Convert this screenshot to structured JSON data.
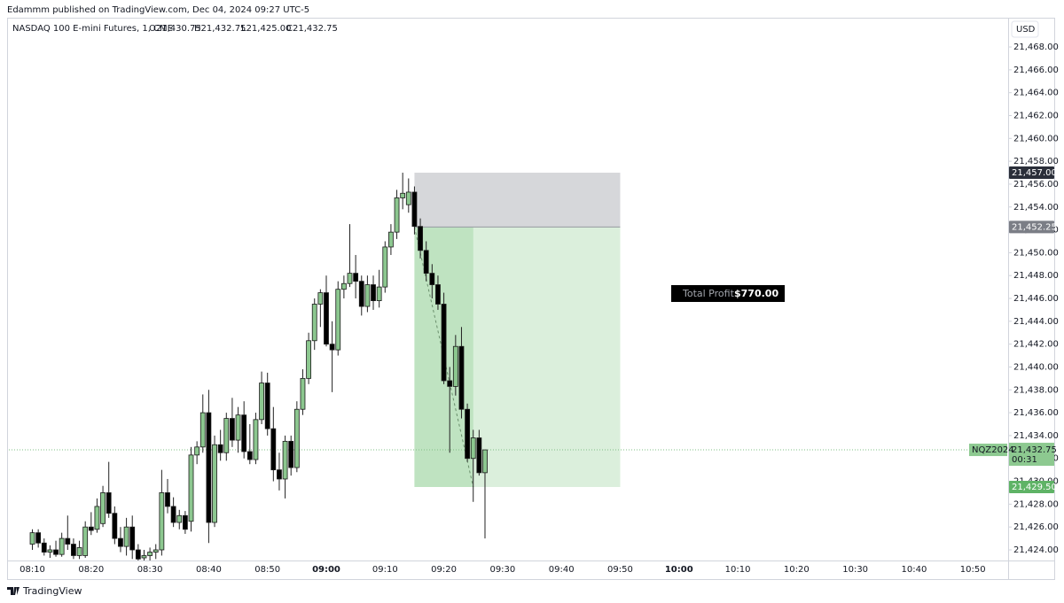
{
  "header": {
    "published": "Edammm published on TradingView.com, Dec 04, 2024 09:27 UTC-5",
    "symbol": "NASDAQ 100 E-mini Futures, 1, CME",
    "ohlc": [
      "O21,430.75",
      "H21,432.75",
      "L21,425.00",
      "C21,432.75"
    ],
    "currency": "USD",
    "brand": "TradingView"
  },
  "chart_data": {
    "type": "candlestick",
    "x": [
      "08:10",
      "08:11",
      "08:12",
      "08:13",
      "08:14",
      "08:15",
      "08:16",
      "08:17",
      "08:18",
      "08:19",
      "08:20",
      "08:21",
      "08:22",
      "08:23",
      "08:24",
      "08:25",
      "08:26",
      "08:27",
      "08:28",
      "08:29",
      "08:30",
      "08:31",
      "08:32",
      "08:33",
      "08:34",
      "08:35",
      "08:36",
      "08:37",
      "08:38",
      "08:39",
      "08:40",
      "08:41",
      "08:42",
      "08:43",
      "08:44",
      "08:45",
      "08:46",
      "08:47",
      "08:48",
      "08:49",
      "08:50",
      "08:51",
      "08:52",
      "08:53",
      "08:54",
      "08:55",
      "08:56",
      "08:57",
      "08:58",
      "08:59",
      "09:00",
      "09:01",
      "09:02",
      "09:03",
      "09:04",
      "09:05",
      "09:06",
      "09:07",
      "09:08",
      "09:09",
      "09:10",
      "09:11",
      "09:12",
      "09:13",
      "09:14",
      "09:15",
      "09:16",
      "09:17",
      "09:18",
      "09:19",
      "09:20",
      "09:21",
      "09:22",
      "09:23",
      "09:24",
      "09:25",
      "09:26",
      "09:27"
    ],
    "open": [
      21424.5,
      21425.5,
      21424.6,
      21423.8,
      21424,
      21423.6,
      21425,
      21424.5,
      21423.5,
      21423.5,
      21426,
      21425.8,
      21426.3,
      21429,
      21427.2,
      21425,
      21424.3,
      21426,
      21424,
      21423.3,
      21423.5,
      21423.8,
      21424,
      21429,
      21427.8,
      21426.4,
      21427,
      21426.5,
      21432.3,
      21433,
      21436,
      21426.4,
      21433.2,
      21432.5,
      21435.5,
      21433.6,
      21435.8,
      21432.6,
      21431.9,
      21435.4,
      21438.6,
      21434.6,
      21431,
      21430.2,
      21433.5,
      21431.2,
      21436.3,
      21439,
      21442.3,
      21445.5,
      21446.5,
      21442,
      21441.5,
      21446.8,
      21447.3,
      21448.2,
      21447.5,
      21445.3,
      21447.2,
      21445.8,
      21447,
      21450.5,
      21451.8,
      21454.8,
      21454.2,
      21455.3,
      21452.3,
      21450.2,
      21448.2,
      21447.2,
      21445.5,
      21438.8,
      21438.3,
      21441.8,
      21436.3,
      21432,
      21433.8,
      21430.75
    ],
    "high": [
      21425.8,
      21425.8,
      21425,
      21424.4,
      21424.8,
      21425.5,
      21427,
      21425,
      21424.8,
      21426.5,
      21427.3,
      21428.5,
      21429.6,
      21431.7,
      21427.8,
      21426,
      21426.8,
      21427,
      21424.5,
      21424,
      21424.2,
      21424.5,
      21431,
      21430.2,
      21428.6,
      21427.5,
      21427.4,
      21433,
      21433.5,
      21437.6,
      21438,
      21434,
      21434.5,
      21436,
      21437.3,
      21436.5,
      21437,
      21435,
      21436,
      21439.6,
      21439.5,
      21436.5,
      21432.5,
      21434,
      21434,
      21437,
      21439.8,
      21443,
      21446,
      21446.8,
      21448,
      21444,
      21447.5,
      21448,
      21452.5,
      21449.8,
      21448,
      21448,
      21448,
      21448.5,
      21451,
      21452.5,
      21455.5,
      21457,
      21456.5,
      21455.8,
      21453,
      21451,
      21449,
      21448,
      21446.5,
      21440,
      21442.8,
      21443.5,
      21436.8,
      21434.5,
      21434.5,
      21432.75
    ],
    "low": [
      21424,
      21424.2,
      21423.5,
      21423.3,
      21423.4,
      21423.4,
      21424,
      21423.2,
      21423.2,
      21423.3,
      21425.3,
      21425.5,
      21426,
      21426.8,
      21424.5,
      21423.8,
      21423.5,
      21423.2,
      21422.8,
      21422.9,
      21423,
      21423.2,
      21423.5,
      21427.2,
      21426,
      21425.8,
      21425.4,
      21425.6,
      21431.5,
      21432.5,
      21424.6,
      21426,
      21431.8,
      21431.8,
      21433,
      21432.5,
      21432,
      21431.5,
      21431.5,
      21435,
      21434,
      21430,
      21429.2,
      21428.5,
      21430.5,
      21430.8,
      21435.8,
      21438.5,
      21441.5,
      21443.5,
      21441.8,
      21437.8,
      21441,
      21446,
      21447,
      21446,
      21444.5,
      21444.8,
      21445,
      21445.2,
      21446.5,
      21449.8,
      21451.2,
      21453.8,
      21453.5,
      21451.6,
      21449.5,
      21447.5,
      21446,
      21445,
      21438.5,
      21432.5,
      21437.5,
      21435.5,
      21431.7,
      21428.2,
      21430.5,
      21425
    ],
    "close": [
      21425.5,
      21424.6,
      21423.8,
      21424,
      21423.6,
      21425,
      21424.5,
      21423.5,
      21424.2,
      21426,
      21425.7,
      21427.8,
      21429,
      21427.2,
      21425,
      21424.3,
      21426,
      21424,
      21423.2,
      21423.5,
      21423.8,
      21424,
      21429,
      21427.8,
      21426.4,
      21427,
      21425.8,
      21432.3,
      21433,
      21436,
      21426.4,
      21433.2,
      21432.5,
      21435.5,
      21433.6,
      21435.8,
      21432.6,
      21431.9,
      21435.4,
      21438.6,
      21434.6,
      21431,
      21430.2,
      21433.5,
      21431.2,
      21436.3,
      21439,
      21442.3,
      21445.5,
      21446.5,
      21442,
      21441.5,
      21446.8,
      21447.3,
      21448.2,
      21447.5,
      21445.3,
      21447.2,
      21445.8,
      21447,
      21450.5,
      21451.8,
      21454.8,
      21455.2,
      21455.3,
      21452.3,
      21450.2,
      21448.2,
      21447.2,
      21445.5,
      21438.8,
      21438.3,
      21441.8,
      21436.3,
      21432,
      21433.8,
      21430.75,
      21432.75
    ],
    "up_color": "#8cc78f",
    "down_color": "#000000",
    "xlim": [
      "08:06",
      "10:56"
    ],
    "xticks": [
      "08:10",
      "08:20",
      "08:30",
      "08:40",
      "08:50",
      "09:00",
      "09:10",
      "09:20",
      "09:30",
      "09:40",
      "09:50",
      "10:00",
      "10:10",
      "10:20",
      "10:30",
      "10:40",
      "10:50"
    ],
    "ylim": [
      21423.07,
      21470.56
    ],
    "yticks": [
      {
        "value": 21424,
        "label": "21,424.00"
      },
      {
        "value": 21426,
        "label": "21,426.00"
      },
      {
        "value": 21428,
        "label": "21,428.00"
      },
      {
        "value": 21430,
        "label": "21,430.00"
      },
      {
        "value": 21432,
        "label": "21,432.00"
      },
      {
        "value": 21434,
        "label": "21,434.00"
      },
      {
        "value": 21436,
        "label": "21,436.00"
      },
      {
        "value": 21438,
        "label": "21,438.00"
      },
      {
        "value": 21440,
        "label": "21,440.00"
      },
      {
        "value": 21442,
        "label": "21,442.00"
      },
      {
        "value": 21444,
        "label": "21,444.00"
      },
      {
        "value": 21446,
        "label": "21,446.00"
      },
      {
        "value": 21448,
        "label": "21,448.00"
      },
      {
        "value": 21450,
        "label": "21,450.00"
      },
      {
        "value": 21452,
        "label": "21,452.00"
      },
      {
        "value": 21454,
        "label": "21,454.00"
      },
      {
        "value": 21456,
        "label": "21,456.00"
      },
      {
        "value": 21458,
        "label": "21,458.00"
      },
      {
        "value": 21460,
        "label": "21,460.00"
      },
      {
        "value": 21462,
        "label": "21,462.00"
      },
      {
        "value": 21464,
        "label": "21,464.00"
      },
      {
        "value": 21466,
        "label": "21,466.00"
      },
      {
        "value": 21468,
        "label": "21,468.00"
      }
    ],
    "position": {
      "start": "09:15",
      "exit": "09:25",
      "end": "09:50",
      "stop": {
        "value": 21457,
        "label": "21,457.00"
      },
      "entry": {
        "value": 21452.25,
        "label": "21,452.25"
      },
      "target": {
        "value": 21429.5,
        "label": "21,429.50"
      },
      "profit_title": "Total Profit",
      "profit": {
        "value": 770,
        "label": "$770.00"
      }
    },
    "last": {
      "value": 21432.75,
      "label": "21,432.75",
      "symbol": "NQZ2024",
      "countdown": "00:31"
    }
  }
}
